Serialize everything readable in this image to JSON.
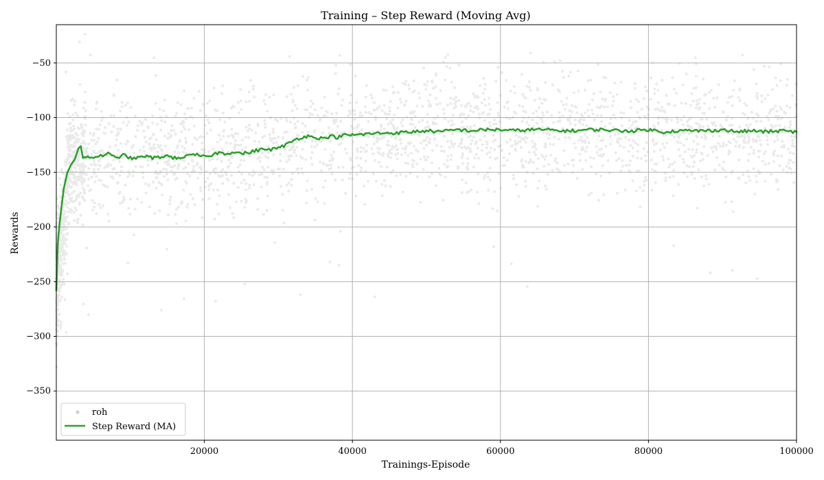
{
  "chart_data": {
    "type": "scatter",
    "title": "Training – Step Reward (Moving Avg)",
    "xlabel": "Trainings-Episode",
    "ylabel": "Rewards",
    "xlim": [
      0,
      100000
    ],
    "ylim": [
      -395,
      -15
    ],
    "xticks": [
      20000,
      40000,
      60000,
      80000,
      100000
    ],
    "yticks": [
      -50,
      -100,
      -150,
      -200,
      -250,
      -300,
      -350
    ],
    "grid": true,
    "legend_position": "lower-left",
    "series": [
      {
        "name": "roh",
        "kind": "scatter",
        "color": "#aaaaaa",
        "opacity": 0.25,
        "point_count_approx": 100000,
        "description_points": [
          {
            "x": 0,
            "y": -250,
            "spread": 90
          },
          {
            "x": 2000,
            "y": -140,
            "spread": 85
          },
          {
            "x": 10000,
            "y": -135,
            "spread": 90
          },
          {
            "x": 30000,
            "y": -128,
            "spread": 90
          },
          {
            "x": 40000,
            "y": -115,
            "spread": 85
          },
          {
            "x": 100000,
            "y": -112,
            "spread": 85
          }
        ]
      },
      {
        "name": "Step Reward (MA)",
        "kind": "line",
        "color": "#2ca02c",
        "x": [
          0,
          200,
          400,
          700,
          1000,
          1500,
          2000,
          2500,
          3000,
          3300,
          3600,
          4000,
          5000,
          6000,
          7000,
          8000,
          9000,
          10000,
          11000,
          12000,
          13000,
          14000,
          15000,
          16000,
          17000,
          18000,
          19000,
          20000,
          21000,
          22000,
          23000,
          24000,
          25000,
          26000,
          27000,
          28000,
          29000,
          30000,
          31000,
          32000,
          33000,
          34000,
          35000,
          36000,
          37000,
          38000,
          39000,
          40000,
          42000,
          44000,
          46000,
          48000,
          50000,
          52000,
          54000,
          56000,
          58000,
          60000,
          62000,
          64000,
          66000,
          68000,
          70000,
          72000,
          74000,
          76000,
          78000,
          80000,
          82000,
          84000,
          86000,
          88000,
          90000,
          92000,
          94000,
          96000,
          98000,
          100000
        ],
        "y": [
          -258,
          -215,
          -200,
          -182,
          -165,
          -150,
          -143,
          -138,
          -128,
          -125,
          -136,
          -137,
          -136,
          -135,
          -133,
          -137,
          -134,
          -137,
          -137,
          -135,
          -137,
          -136,
          -135,
          -137,
          -136,
          -135,
          -134,
          -136,
          -134,
          -132,
          -133,
          -131,
          -133,
          -132,
          -130,
          -129,
          -129,
          -128,
          -125,
          -121,
          -118,
          -117,
          -118,
          -119,
          -117,
          -118,
          -116,
          -116,
          -115,
          -114,
          -114,
          -113,
          -112,
          -113,
          -111,
          -112,
          -111,
          -111,
          -112,
          -111,
          -111,
          -112,
          -112,
          -111,
          -111,
          -112,
          -112,
          -111,
          -113,
          -112,
          -112,
          -112,
          -111,
          -113,
          -112,
          -113,
          -112,
          -113
        ]
      }
    ]
  }
}
